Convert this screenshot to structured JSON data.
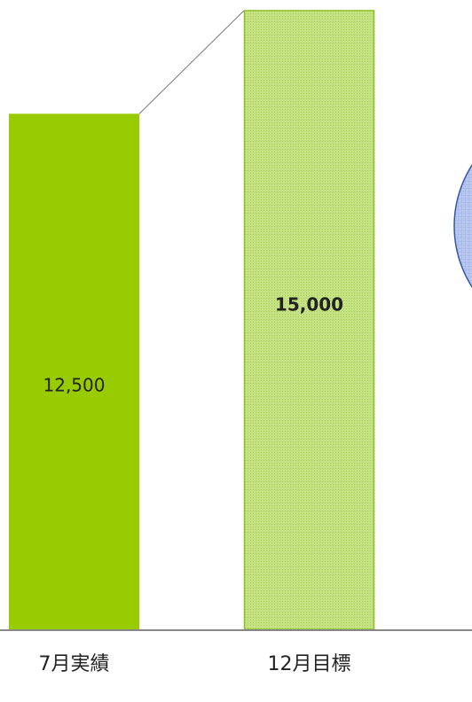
{
  "chart_data": {
    "type": "bar",
    "categories": [
      "7月実績",
      "12月目標"
    ],
    "values": [
      12500,
      15000
    ],
    "value_labels": [
      "12,500",
      "15,000"
    ],
    "colors": [
      "#99cc00",
      "#bfe07a"
    ]
  }
}
